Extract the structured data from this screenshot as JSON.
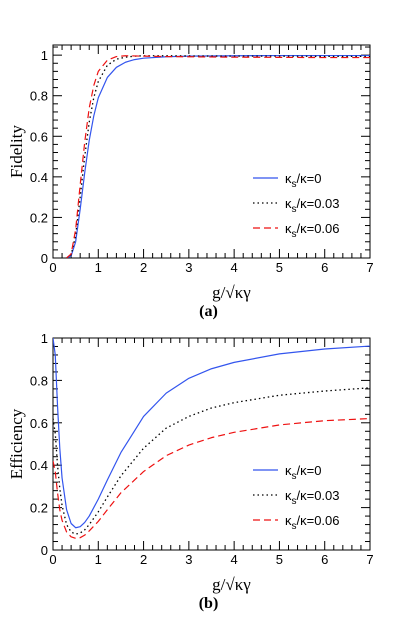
{
  "chart_data": [
    {
      "panel": "a",
      "type": "line",
      "caption": "(a)",
      "ylabel": "Fidelity",
      "xlabel": "g/√κγ",
      "xlim": [
        0,
        7
      ],
      "ylim": [
        0,
        1.05
      ],
      "xticks": [
        0,
        1,
        2,
        3,
        4,
        5,
        6,
        7
      ],
      "yticks": [
        0,
        0.2,
        0.4,
        0.6,
        0.8,
        1
      ],
      "legend_position": "bottom-right",
      "series": [
        {
          "name": "κs/κ=0",
          "name_main": "κ",
          "name_sub": "s",
          "name_rest": "/κ=0",
          "color": "#3355ee",
          "style": "solid",
          "x": [
            0.3,
            0.4,
            0.5,
            0.6,
            0.7,
            0.8,
            0.9,
            1.0,
            1.2,
            1.4,
            1.6,
            1.8,
            2.0,
            2.5,
            3.0,
            4.0,
            5.0,
            6.0,
            7.0
          ],
          "y": [
            0.0,
            0.01,
            0.08,
            0.24,
            0.42,
            0.58,
            0.7,
            0.79,
            0.89,
            0.94,
            0.965,
            0.978,
            0.985,
            0.992,
            0.995,
            0.997,
            0.998,
            0.998,
            0.998
          ]
        },
        {
          "name": "κs/κ=0.03",
          "name_main": "κ",
          "name_sub": "s",
          "name_rest": "/κ=0.03",
          "color": "#000000",
          "style": "dotted",
          "x": [
            0.3,
            0.4,
            0.5,
            0.6,
            0.7,
            0.8,
            0.9,
            1.0,
            1.2,
            1.4,
            1.6,
            1.8,
            2.0,
            2.5,
            3.0,
            4.0,
            5.0,
            6.0,
            7.0
          ],
          "y": [
            0.0,
            0.015,
            0.11,
            0.3,
            0.5,
            0.67,
            0.79,
            0.87,
            0.95,
            0.98,
            0.99,
            0.995,
            0.997,
            0.997,
            0.996,
            0.995,
            0.995,
            0.994,
            0.994
          ]
        },
        {
          "name": "κs/κ=0.06",
          "name_main": "κ",
          "name_sub": "s",
          "name_rest": "/κ=0.06",
          "color": "#ee1111",
          "style": "dashed",
          "x": [
            0.3,
            0.4,
            0.5,
            0.6,
            0.7,
            0.8,
            0.9,
            1.0,
            1.2,
            1.4,
            1.6,
            1.8,
            2.0,
            2.5,
            3.0,
            4.0,
            5.0,
            6.0,
            7.0
          ],
          "y": [
            0.0,
            0.02,
            0.14,
            0.36,
            0.57,
            0.74,
            0.85,
            0.92,
            0.975,
            0.993,
            0.997,
            0.996,
            0.995,
            0.993,
            0.992,
            0.99,
            0.989,
            0.988,
            0.988
          ]
        }
      ]
    },
    {
      "panel": "b",
      "type": "line",
      "caption": "(b)",
      "ylabel": "Efficiency",
      "xlabel": "g/√κγ",
      "xlim": [
        0,
        7
      ],
      "ylim": [
        0,
        1.0
      ],
      "xticks": [
        0,
        1,
        2,
        3,
        4,
        5,
        6,
        7
      ],
      "yticks": [
        0,
        0.2,
        0.4,
        0.6,
        0.8,
        1
      ],
      "legend_position": "bottom-right",
      "series": [
        {
          "name": "κs/κ=0",
          "name_main": "κ",
          "name_sub": "s",
          "name_rest": "/κ=0",
          "color": "#3355ee",
          "style": "solid",
          "x": [
            0.0,
            0.05,
            0.1,
            0.15,
            0.2,
            0.3,
            0.4,
            0.5,
            0.6,
            0.7,
            0.8,
            1.0,
            1.2,
            1.5,
            2.0,
            2.5,
            3.0,
            3.5,
            4.0,
            5.0,
            6.0,
            7.0
          ],
          "y": [
            1.0,
            0.92,
            0.68,
            0.48,
            0.34,
            0.19,
            0.125,
            0.105,
            0.11,
            0.13,
            0.16,
            0.24,
            0.33,
            0.46,
            0.63,
            0.74,
            0.81,
            0.855,
            0.885,
            0.925,
            0.948,
            0.962
          ]
        },
        {
          "name": "κs/κ=0.03",
          "name_main": "κ",
          "name_sub": "s",
          "name_rest": "/κ=0.03",
          "color": "#000000",
          "style": "dotted",
          "x": [
            0.0,
            0.05,
            0.1,
            0.15,
            0.2,
            0.3,
            0.4,
            0.5,
            0.6,
            0.7,
            0.8,
            1.0,
            1.2,
            1.5,
            2.0,
            2.5,
            3.0,
            3.5,
            4.0,
            5.0,
            6.0,
            7.0
          ],
          "y": [
            0.62,
            0.55,
            0.4,
            0.29,
            0.21,
            0.12,
            0.085,
            0.075,
            0.08,
            0.095,
            0.12,
            0.18,
            0.25,
            0.35,
            0.48,
            0.575,
            0.63,
            0.67,
            0.695,
            0.73,
            0.75,
            0.765
          ]
        },
        {
          "name": "κs/κ=0.06",
          "name_main": "κ",
          "name_sub": "s",
          "name_rest": "/κ=0.06",
          "color": "#ee1111",
          "style": "dashed",
          "x": [
            0.0,
            0.05,
            0.1,
            0.15,
            0.2,
            0.3,
            0.4,
            0.5,
            0.6,
            0.7,
            0.8,
            1.0,
            1.2,
            1.5,
            2.0,
            2.5,
            3.0,
            3.5,
            4.0,
            5.0,
            6.0,
            7.0
          ],
          "y": [
            0.42,
            0.37,
            0.27,
            0.19,
            0.14,
            0.085,
            0.062,
            0.055,
            0.058,
            0.07,
            0.09,
            0.135,
            0.19,
            0.27,
            0.37,
            0.445,
            0.495,
            0.53,
            0.555,
            0.59,
            0.61,
            0.62
          ]
        }
      ]
    }
  ]
}
